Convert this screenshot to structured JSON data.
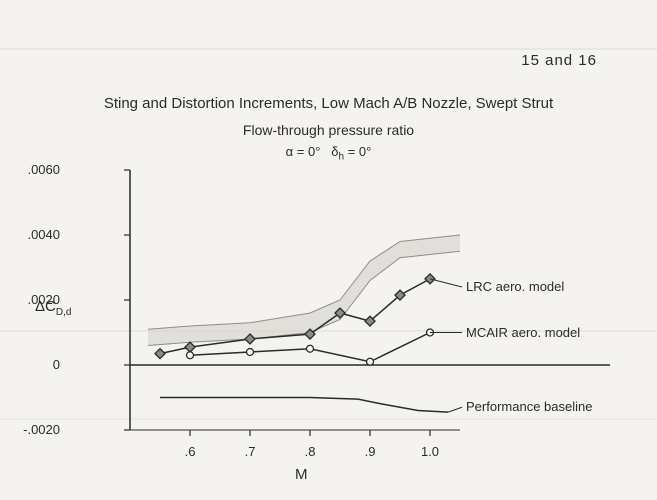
{
  "page_number": "15  and 16",
  "title": "Sting and Distortion Increments, Low Mach A/B Nozzle, Swept Strut",
  "subtitle": "Flow-through pressure ratio",
  "conditions_html": "α = 0°&nbsp;&nbsp;&nbsp;δ<sub>h</sub> = 0°",
  "chart": {
    "type": "line",
    "xlabel": "M",
    "ylabel_html": "ΔC<sub>D,d</sub>",
    "xlim": [
      0.5,
      1.05
    ],
    "ylim": [
      -0.002,
      0.006
    ],
    "xticks": [
      0.6,
      0.7,
      0.8,
      0.9,
      1.0
    ],
    "xtick_labels": [
      ".6",
      ".7",
      ".8",
      ".9",
      "1.0"
    ],
    "yticks": [
      -0.002,
      0,
      0.002,
      0.004,
      0.006
    ],
    "ytick_labels": [
      "-.0020",
      "0",
      ".0020",
      ".0040",
      ".0060"
    ],
    "axis_color": "#2b2b2b",
    "background_color": "#f5f3ef",
    "tick_fontsize": 13,
    "label_fontsize": 15,
    "line_width": 1.5,
    "band_fill": "#d8d6d0",
    "series": [
      {
        "id": "lrc_band_upper",
        "kind": "band_edge",
        "x": [
          0.53,
          0.6,
          0.7,
          0.8,
          0.85,
          0.9,
          0.95,
          1.0,
          1.05
        ],
        "y": [
          0.0011,
          0.0012,
          0.0013,
          0.0016,
          0.002,
          0.0032,
          0.0038,
          0.0039,
          0.004
        ]
      },
      {
        "id": "lrc_band_lower",
        "kind": "band_edge",
        "x": [
          0.53,
          0.6,
          0.7,
          0.8,
          0.85,
          0.9,
          0.95,
          1.0,
          1.05
        ],
        "y": [
          0.0006,
          0.0007,
          0.0008,
          0.001,
          0.0014,
          0.0026,
          0.0033,
          0.0034,
          0.0035
        ]
      },
      {
        "id": "lrc",
        "label": "LRC aero. model",
        "marker": "diamond",
        "marker_size": 8,
        "marker_color": "#8a8a88",
        "marker_stroke": "#2b2b2b",
        "line_color": "#2b2b2b",
        "x": [
          0.55,
          0.6,
          0.7,
          0.8,
          0.85,
          0.9,
          0.95,
          1.0
        ],
        "y": [
          0.00035,
          0.00055,
          0.0008,
          0.00095,
          0.0016,
          0.00135,
          0.00215,
          0.00265
        ],
        "label_xy": [
          1.06,
          0.0024
        ]
      },
      {
        "id": "mcair",
        "label": "MCAIR aero. model",
        "marker": "circle",
        "marker_size": 7,
        "marker_color": "#f5f3ef",
        "marker_stroke": "#2b2b2b",
        "line_color": "#2b2b2b",
        "x": [
          0.6,
          0.7,
          0.8,
          0.9,
          1.0
        ],
        "y": [
          0.0003,
          0.0004,
          0.0005,
          0.0001,
          0.001
        ],
        "label_xy": [
          1.06,
          0.001
        ]
      },
      {
        "id": "baseline",
        "label": "Performance baseline",
        "marker": "none",
        "line_color": "#2b2b2b",
        "x": [
          0.55,
          0.8,
          0.88,
          0.92,
          0.98,
          1.03
        ],
        "y": [
          -0.001,
          -0.001,
          -0.00105,
          -0.0012,
          -0.0014,
          -0.00145
        ],
        "label_xy": [
          1.06,
          -0.0013
        ]
      }
    ]
  }
}
